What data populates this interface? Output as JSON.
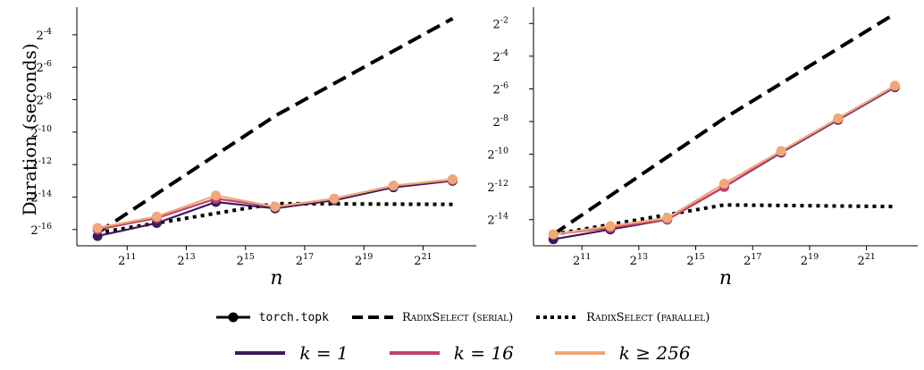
{
  "chart_data": [
    {
      "type": "line",
      "ylabel": "Duration (seconds)",
      "xlabel": "n",
      "x_scale": "log2",
      "y_scale": "log2",
      "x": [
        1024,
        4096,
        16384,
        65536,
        262144,
        1048576,
        4194304
      ],
      "x_ticks": [
        2048,
        8192,
        32768,
        131072,
        524288,
        2097152
      ],
      "x_tick_exponents": [
        "11",
        "13",
        "15",
        "17",
        "19",
        "21"
      ],
      "y_ticks_exponents": [
        "-16",
        "-14",
        "-12",
        "-10",
        "-8",
        "-6",
        "-4"
      ],
      "xlim_log2": [
        9.3,
        22.8
      ],
      "ylim_log2": [
        -17.0,
        -2.3
      ],
      "series": [
        {
          "name": "k = 1",
          "kind": "torch.topk",
          "color": "#3d1a5c",
          "y_log2": [
            -16.4,
            -15.6,
            -14.3,
            -14.7,
            -14.2,
            -13.4,
            -13.0
          ]
        },
        {
          "name": "k = 16",
          "kind": "torch.topk",
          "color": "#c2416b",
          "y_log2": [
            -16.0,
            -15.3,
            -14.1,
            -14.6,
            -14.1,
            -13.3,
            -12.95
          ]
        },
        {
          "name": "k ≥ 256",
          "kind": "torch.topk",
          "color": "#f0a878",
          "y_log2": [
            -15.9,
            -15.2,
            -13.9,
            -14.6,
            -14.1,
            -13.3,
            -12.9
          ]
        },
        {
          "name": "RadixSelect (serial)",
          "kind": "reference",
          "color": "#000000",
          "dash": "dashed",
          "y_log2": [
            -16.2,
            -9.0,
            -3.0
          ]
        },
        {
          "name": "RadixSelect (parallel)",
          "kind": "reference",
          "color": "#000000",
          "dash": "dotted",
          "y_log2": [
            -16.2,
            -14.4,
            -14.45
          ]
        }
      ]
    },
    {
      "type": "line",
      "ylabel": "",
      "xlabel": "n",
      "x_scale": "log2",
      "y_scale": "log2",
      "x": [
        1024,
        4096,
        16384,
        65536,
        262144,
        1048576,
        4194304
      ],
      "x_ticks": [
        2048,
        8192,
        32768,
        131072,
        524288,
        2097152
      ],
      "x_tick_exponents": [
        "11",
        "13",
        "15",
        "17",
        "19",
        "21"
      ],
      "y_ticks_exponents": [
        "-14",
        "-12",
        "-10",
        "-8",
        "-6",
        "-4",
        "-2"
      ],
      "xlim_log2": [
        9.3,
        22.8
      ],
      "ylim_log2": [
        -15.6,
        -1.0
      ],
      "series": [
        {
          "name": "k = 1",
          "kind": "torch.topk",
          "color": "#3d1a5c",
          "y_log2": [
            -15.2,
            -14.6,
            -14.0,
            -12.0,
            -9.9,
            -7.9,
            -5.9
          ]
        },
        {
          "name": "k = 16",
          "kind": "torch.topk",
          "color": "#c2416b",
          "y_log2": [
            -14.9,
            -14.5,
            -14.0,
            -12.0,
            -9.85,
            -7.85,
            -5.85
          ]
        },
        {
          "name": "k ≥ 256",
          "kind": "torch.topk",
          "color": "#f0a878",
          "y_log2": [
            -14.9,
            -14.4,
            -13.9,
            -11.8,
            -9.8,
            -7.8,
            -5.8
          ]
        },
        {
          "name": "RadixSelect (serial)",
          "kind": "reference",
          "color": "#000000",
          "dash": "dashed",
          "y_log2": [
            -14.9,
            -7.8,
            -1.4
          ]
        },
        {
          "name": "RadixSelect (parallel)",
          "kind": "reference",
          "color": "#000000",
          "dash": "dotted",
          "y_log2": [
            -14.9,
            -13.1,
            -13.2
          ]
        }
      ]
    }
  ],
  "legend": {
    "style_entries": [
      {
        "label": "torch.topk",
        "style": "marker-line",
        "font": "mono"
      },
      {
        "label": "RadixSelect (serial)",
        "style": "dashed",
        "font": "smallcaps"
      },
      {
        "label": "RadixSelect (parallel)",
        "style": "dotted",
        "font": "smallcaps"
      }
    ],
    "color_entries": [
      {
        "label": "k = 1",
        "color": "#3d1a5c"
      },
      {
        "label": "k = 16",
        "color": "#c2416b"
      },
      {
        "label": "k ≥ 256",
        "color": "#f0a878"
      }
    ]
  }
}
